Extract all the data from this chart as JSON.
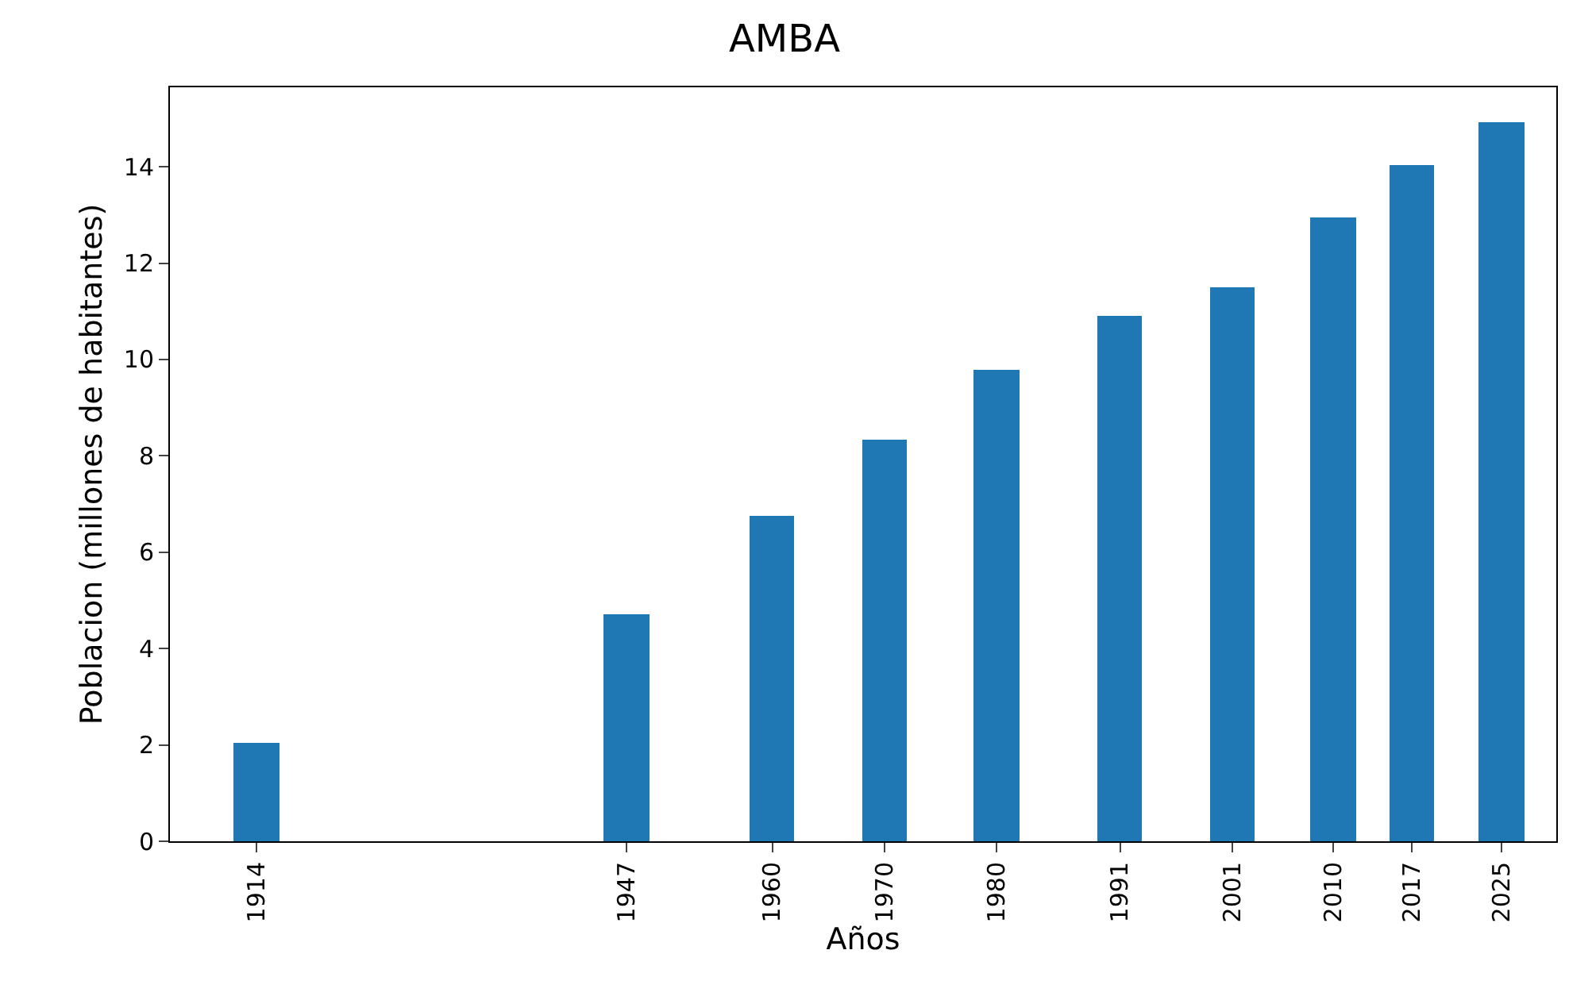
{
  "chart_data": {
    "type": "bar",
    "title": "AMBA",
    "xlabel": "Años",
    "ylabel": "Poblacion (millones de habitantes)",
    "x": [
      1914,
      1947,
      1960,
      1970,
      1980,
      1991,
      2001,
      2010,
      2017,
      2025
    ],
    "values": [
      2.05,
      4.72,
      6.75,
      8.35,
      9.79,
      10.89,
      11.51,
      12.94,
      14.02,
      14.91
    ],
    "color": "#1f77b4",
    "xlim": [
      1906.3,
      2029.9
    ],
    "xticks": [
      1914,
      1947,
      1960,
      1970,
      1980,
      1991,
      2001,
      2010,
      2017,
      2025
    ],
    "ylim": [
      0,
      15.65
    ],
    "yticks": [
      0,
      2,
      4,
      6,
      8,
      10,
      12,
      14
    ]
  }
}
